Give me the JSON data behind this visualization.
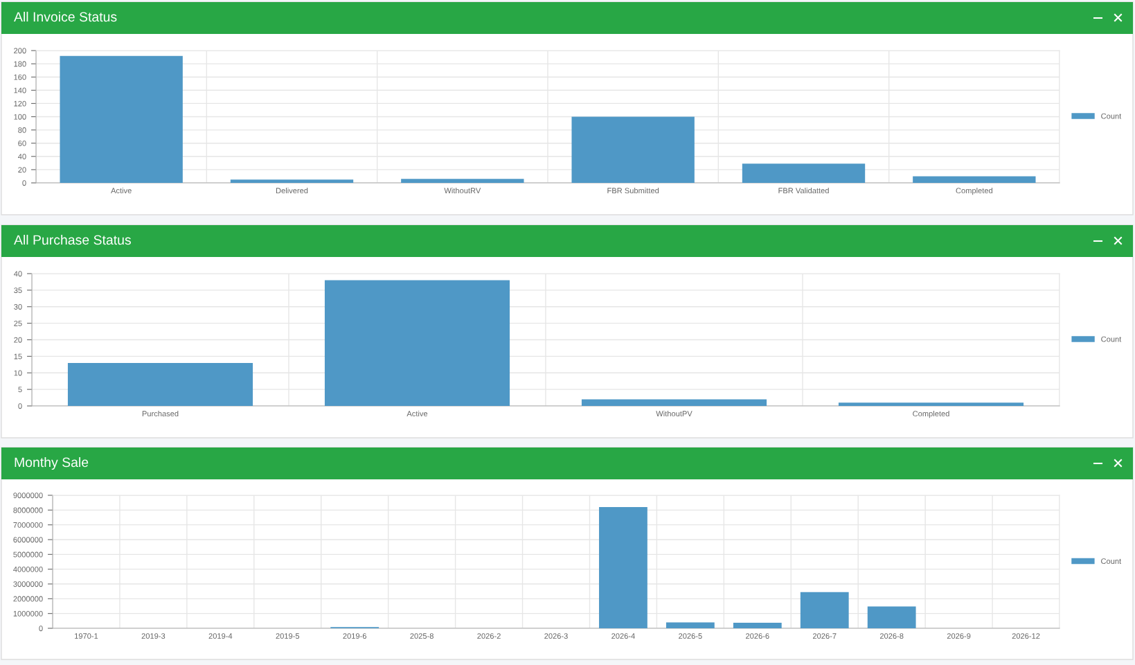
{
  "chart_data": [
    {
      "type": "bar",
      "title": "All Invoice Status",
      "categories": [
        "Active",
        "Delivered",
        "WithoutRV",
        "FBR Submitted",
        "FBR Validatted",
        "Completed"
      ],
      "series": [
        {
          "name": "Count",
          "color": "#4f98c6",
          "values": [
            192,
            5,
            6,
            100,
            29,
            10
          ]
        }
      ],
      "ylim": [
        0,
        200
      ],
      "yticks": [
        0,
        20,
        40,
        60,
        80,
        100,
        120,
        140,
        160,
        180,
        200
      ],
      "grid": true,
      "legend": "right"
    },
    {
      "type": "bar",
      "title": "All Purchase Status",
      "categories": [
        "Purchased",
        "Active",
        "WithoutPV",
        "Completed"
      ],
      "series": [
        {
          "name": "Count",
          "color": "#4f98c6",
          "values": [
            13,
            38,
            2,
            1
          ]
        }
      ],
      "ylim": [
        0,
        40
      ],
      "yticks": [
        0,
        5,
        10,
        15,
        20,
        25,
        30,
        35,
        40
      ],
      "grid": true,
      "legend": "right"
    },
    {
      "type": "bar",
      "title": "Monthy Sale",
      "categories": [
        "1970-1",
        "2019-3",
        "2019-4",
        "2019-5",
        "2019-6",
        "2025-8",
        "2026-2",
        "2026-3",
        "2026-4",
        "2026-5",
        "2026-6",
        "2026-7",
        "2026-8",
        "2026-9",
        "2026-12"
      ],
      "series": [
        {
          "name": "Count",
          "color": "#4f98c6",
          "values": [
            0,
            null,
            null,
            null,
            80000,
            0,
            null,
            0,
            8200000,
            400000,
            370000,
            2450000,
            1480000,
            0,
            0
          ]
        }
      ],
      "ylim": [
        0,
        9000000
      ],
      "yticks": [
        0,
        1000000,
        2000000,
        3000000,
        4000000,
        5000000,
        6000000,
        7000000,
        8000000,
        9000000
      ],
      "grid": true,
      "legend": "right"
    }
  ]
}
